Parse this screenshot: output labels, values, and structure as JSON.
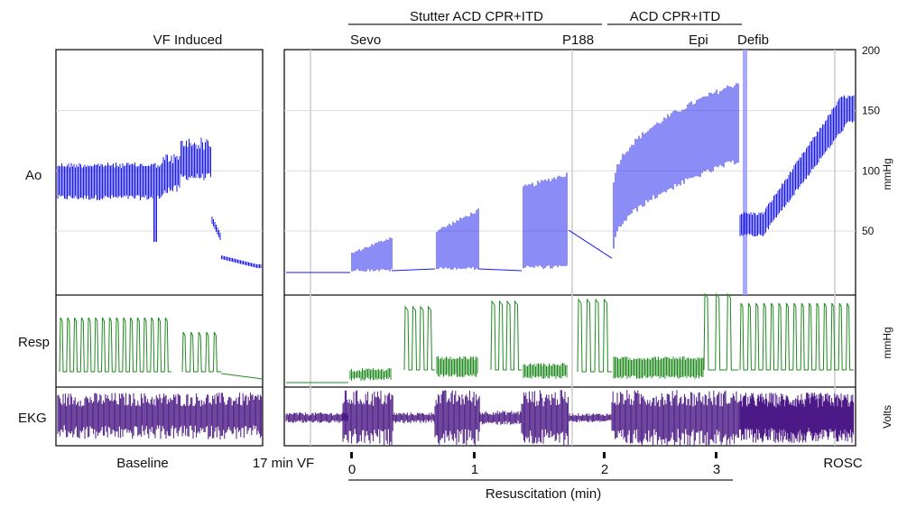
{
  "chart_data": {
    "type": "line",
    "title": "",
    "channels": [
      {
        "name": "Ao",
        "unit": "mmHg",
        "color": "#1a1aee",
        "yticks": [
          50,
          100,
          150,
          200
        ],
        "ylim": [
          15,
          200
        ]
      },
      {
        "name": "Resp",
        "unit": "mmHg",
        "color": "#1f8a1f"
      },
      {
        "name": "EKG",
        "unit": "Volts",
        "color": "#4b1a86"
      }
    ],
    "ao_unit_label": "mmHg",
    "resp_unit_label": "mmHg",
    "ekg_unit_label": "Volts",
    "events_top": {
      "vf_induced": "VF Induced",
      "phase1": "Stutter ACD CPR+ITD",
      "phase2": "ACD CPR+ITD",
      "sevo": "Sevo",
      "p188": "P188",
      "epi": "Epi",
      "defib": "Defib"
    },
    "bottom_labels": {
      "baseline": "Baseline",
      "vf": "17 min VF",
      "rosc": "ROSC"
    },
    "xaxis": {
      "label": "Resuscitation (min)",
      "ticks": [
        "0",
        "1",
        "2",
        "3"
      ]
    },
    "series": [
      {
        "name": "Ao",
        "segments": [
          {
            "phase": "Baseline",
            "values_mmHg": [
              [
                0,
                90
              ],
              [
                0.5,
                90
              ],
              [
                0.8,
                95
              ],
              [
                0.95,
                115
              ],
              [
                1.0,
                20
              ]
            ]
          },
          {
            "phase": "Resuscitation",
            "values_mmHg": [
              [
                0,
                17
              ],
              [
                0.3,
                40
              ],
              [
                0.7,
                75
              ],
              [
                1.15,
                95
              ],
              [
                1.7,
                20
              ],
              [
                2.0,
                30
              ],
              [
                2.2,
                120
              ],
              [
                3.1,
                180
              ],
              [
                3.2,
                70
              ],
              [
                3.5,
                50
              ],
              [
                4.2,
                160
              ]
            ]
          }
        ]
      }
    ]
  }
}
